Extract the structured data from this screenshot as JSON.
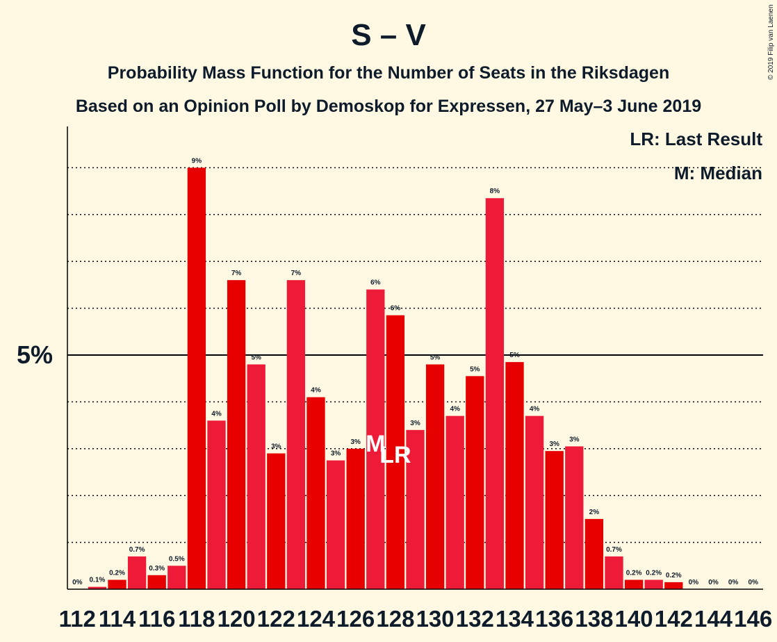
{
  "chart_data": {
    "type": "bar",
    "title": "S – V",
    "subtitle": "Probability Mass Function for the Number of Seats in the Riksdagen",
    "subtitle2": "Based on an Opinion Poll by Demoskop for Expressen, 27 May–3 June 2019",
    "copyright": "© 2019 Filip van Laenen",
    "legend": {
      "lr": "LR: Last Result",
      "m": "M: Median",
      "position": "top-right"
    },
    "y_axis": {
      "tick_label": "5%",
      "tick_value": 5,
      "ylim": [
        0,
        9.5
      ],
      "grid": "dotted every 1%"
    },
    "x_tick_labels": [
      "112",
      "114",
      "116",
      "118",
      "120",
      "122",
      "124",
      "126",
      "128",
      "130",
      "132",
      "134",
      "136",
      "138",
      "140",
      "142",
      "144",
      "146"
    ],
    "categories": [
      112,
      113,
      114,
      115,
      116,
      117,
      118,
      119,
      120,
      121,
      122,
      123,
      124,
      125,
      126,
      127,
      128,
      129,
      130,
      131,
      132,
      133,
      134,
      135,
      136,
      137,
      138,
      139,
      140,
      141,
      142,
      143,
      144,
      145,
      146
    ],
    "values": [
      0.0,
      0.05,
      0.2,
      0.7,
      0.3,
      0.5,
      9.0,
      3.6,
      6.6,
      4.8,
      2.9,
      6.6,
      4.1,
      2.75,
      3.0,
      6.4,
      5.85,
      3.4,
      4.8,
      3.7,
      4.55,
      8.35,
      4.85,
      3.7,
      2.95,
      3.05,
      1.5,
      0.7,
      0.2,
      0.2,
      0.15,
      0.0,
      0.0,
      0.0,
      0.0
    ],
    "labels": [
      "0%",
      "0.1%",
      "0.2%",
      "0.7%",
      "0.3%",
      "0.5%",
      "9%",
      "4%",
      "7%",
      "5%",
      "3%",
      "7%",
      "4%",
      "3%",
      "3%",
      "6%",
      "6%",
      "3%",
      "5%",
      "4%",
      "5%",
      "8%",
      "5%",
      "4%",
      "3%",
      "3%",
      "2%",
      "0.7%",
      "0.2%",
      "0.2%",
      "0.2%",
      "0%",
      "0%",
      "0%",
      "0%"
    ],
    "median_seat": 127,
    "median_marker": "M",
    "last_result_seat": 128,
    "last_result_marker": "LR",
    "colors": {
      "bar_even": "#e60000",
      "bar_odd": "#ed1b38",
      "background": "#fff9e3",
      "text": "#0d1b2a"
    }
  }
}
